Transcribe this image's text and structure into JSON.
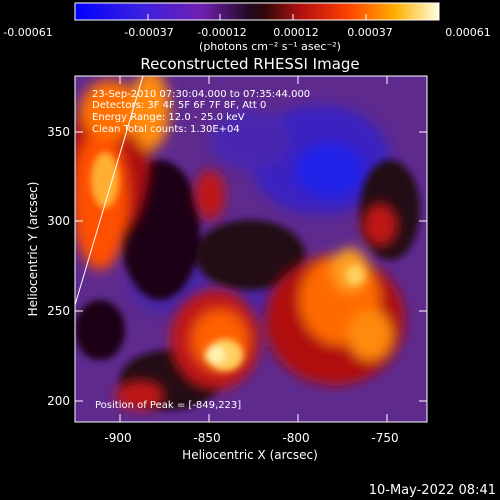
{
  "colorbar": {
    "tick_labels": [
      "-0.00061",
      "-0.00037",
      "-0.00012",
      "0.00012",
      "0.00037",
      "0.00061"
    ],
    "unit_label": "(photons cm⁻² s⁻¹ asec⁻²)"
  },
  "title": "Reconstructed RHESSI Image",
  "info": {
    "line1": "23-Sep-2010 07:30:04.000 to 07:35:44.000",
    "line2": "Detectors: 3F 4F 5F 6F 7F 8F, Att 0",
    "line3": "Energy Range: 12.0 - 25.0 keV",
    "line4": "Clean    Total counts: 1.30E+04"
  },
  "peak_label": "Position of Peak = [-849,223]",
  "x_axis": {
    "label": "Heliocentric X (arcsec)",
    "ticks": [
      "-900",
      "-850",
      "-800",
      "-750"
    ]
  },
  "y_axis": {
    "label": "Heliocentric Y (arcsec)",
    "ticks": [
      "350",
      "300",
      "250",
      "200"
    ]
  },
  "timestamp": "10-May-2022 08:41",
  "colors": {
    "background": "#000000",
    "limb_line": "#ffffff",
    "neg_max": "#1f1fff",
    "neg_mid": "#5a2cc8",
    "neutral": "#6b2f9a",
    "pos_low": "#b01010",
    "pos_mid": "#ff5000",
    "pos_high": "#ffb030",
    "peak": "#fff2b0"
  }
}
